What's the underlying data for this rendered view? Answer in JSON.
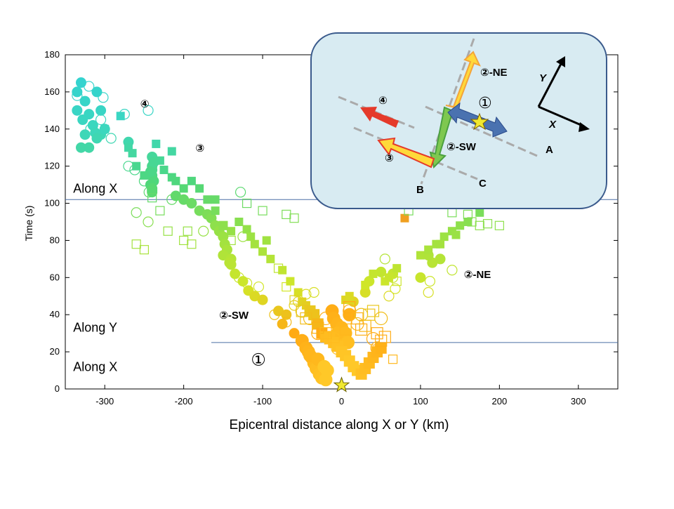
{
  "chart_data": {
    "type": "scatter",
    "xlabel": "Epicentral distance along X or Y (km)",
    "ylabel": "Time (s)",
    "xlim": [
      -350,
      350
    ],
    "ylim": [
      0,
      180
    ],
    "xticks": [
      -300,
      -200,
      -100,
      0,
      100,
      200,
      300
    ],
    "yticks": [
      0,
      20,
      40,
      60,
      80,
      100,
      120,
      140,
      160,
      180
    ],
    "grid": false,
    "region_labels": [
      {
        "text": "Along X",
        "x": -340,
        "y": 12
      },
      {
        "text": "Along Y",
        "x": -340,
        "y": 33
      },
      {
        "text": "Along X",
        "x": -340,
        "y": 108
      }
    ],
    "boundaries": [
      {
        "y": 25,
        "x_from": -165,
        "x_to": 350
      },
      {
        "y": 102,
        "x_from": -350,
        "x_to": 350
      }
    ],
    "annotations": [
      {
        "text": "①",
        "x": -115,
        "y": 15,
        "big": true
      },
      {
        "text": "②-SW",
        "x": -155,
        "y": 40
      },
      {
        "text": "②-NE",
        "x": 155,
        "y": 62
      },
      {
        "text": "③",
        "x": -185,
        "y": 130
      },
      {
        "text": "④",
        "x": -255,
        "y": 154
      }
    ],
    "epicenter": {
      "x": 0,
      "y": 2,
      "color": "#f0e830"
    },
    "series": [
      {
        "marker": "filled-circle",
        "points": [
          [
            -330,
            165
          ],
          [
            -325,
            155
          ],
          [
            -320,
            148
          ],
          [
            -335,
            160
          ],
          [
            -310,
            160
          ],
          [
            -305,
            150
          ],
          [
            -315,
            142
          ],
          [
            -325,
            137
          ],
          [
            -330,
            130
          ],
          [
            -320,
            130
          ],
          [
            -305,
            137
          ],
          [
            -300,
            140
          ],
          [
            -335,
            150
          ],
          [
            -312,
            138
          ],
          [
            -328,
            145
          ],
          [
            -310,
            135
          ],
          [
            -240,
            125
          ],
          [
            -240,
            120
          ],
          [
            -240,
            118
          ],
          [
            -240,
            115
          ],
          [
            -238,
            112
          ],
          [
            -242,
            110
          ],
          [
            -240,
            108
          ],
          [
            -238,
            122
          ],
          [
            -242,
            117
          ],
          [
            -240,
            106
          ],
          [
            -270,
            133
          ],
          [
            -240,
            107
          ],
          [
            -210,
            104
          ],
          [
            -200,
            102
          ],
          [
            -190,
            100
          ],
          [
            -180,
            96
          ],
          [
            -170,
            94
          ],
          [
            -165,
            92
          ],
          [
            -160,
            88
          ],
          [
            -155,
            85
          ],
          [
            -150,
            82
          ],
          [
            -148,
            78
          ],
          [
            -145,
            75
          ],
          [
            -150,
            72
          ],
          [
            -140,
            70
          ],
          [
            -142,
            68
          ],
          [
            -125,
            58
          ],
          [
            -118,
            53
          ],
          [
            -110,
            50
          ],
          [
            -100,
            48
          ],
          [
            -80,
            42
          ],
          [
            -70,
            40
          ],
          [
            -75,
            35
          ],
          [
            -60,
            30
          ],
          [
            -50,
            26
          ],
          [
            -45,
            22
          ],
          [
            -42,
            20
          ],
          [
            -38,
            17
          ],
          [
            -35,
            14
          ],
          [
            -32,
            11
          ],
          [
            -28,
            8
          ],
          [
            -25,
            6
          ],
          [
            -20,
            5
          ],
          [
            -40,
            18
          ],
          [
            -30,
            16
          ],
          [
            -22,
            12
          ],
          [
            -18,
            10
          ],
          [
            -12,
            42
          ],
          [
            -10,
            38
          ],
          [
            -6,
            35
          ],
          [
            0,
            33
          ],
          [
            5,
            30
          ],
          [
            -3,
            27
          ],
          [
            8,
            25
          ],
          [
            -5,
            30
          ],
          [
            15,
            47
          ],
          [
            10,
            40
          ],
          [
            30,
            52
          ],
          [
            35,
            58
          ],
          [
            50,
            63
          ],
          [
            65,
            62
          ],
          [
            100,
            60
          ],
          [
            115,
            68
          ],
          [
            125,
            70
          ],
          [
            110,
            72
          ],
          [
            -140,
            67
          ],
          [
            -135,
            62
          ]
        ]
      },
      {
        "marker": "open-circle",
        "points": [
          [
            -335,
            158
          ],
          [
            -320,
            163
          ],
          [
            -302,
            157
          ],
          [
            -305,
            145
          ],
          [
            -318,
            140
          ],
          [
            -292,
            135
          ],
          [
            -275,
            148
          ],
          [
            -245,
            150
          ],
          [
            -270,
            120
          ],
          [
            -262,
            118
          ],
          [
            -250,
            112
          ],
          [
            -244,
            106
          ],
          [
            -215,
            102
          ],
          [
            -128,
            106
          ],
          [
            -260,
            95
          ],
          [
            -245,
            90
          ],
          [
            -175,
            85
          ],
          [
            -125,
            82
          ],
          [
            -130,
            60
          ],
          [
            -120,
            57
          ],
          [
            -105,
            55
          ],
          [
            -85,
            40
          ],
          [
            -70,
            36
          ],
          [
            -60,
            45
          ],
          [
            -50,
            42
          ],
          [
            -40,
            38
          ],
          [
            -55,
            47
          ],
          [
            -45,
            51
          ],
          [
            -35,
            52
          ],
          [
            -30,
            30
          ],
          [
            -20,
            38
          ],
          [
            -10,
            27
          ],
          [
            -5,
            22
          ],
          [
            10,
            42
          ],
          [
            20,
            35
          ],
          [
            25,
            40
          ],
          [
            40,
            27
          ],
          [
            45,
            22
          ],
          [
            50,
            38
          ],
          [
            55,
            70
          ],
          [
            60,
            50
          ],
          [
            68,
            54
          ],
          [
            110,
            52
          ],
          [
            112,
            58
          ],
          [
            140,
            64
          ],
          [
            65,
            60
          ]
        ]
      },
      {
        "marker": "filled-square",
        "points": [
          [
            -300,
            140
          ],
          [
            -280,
            147
          ],
          [
            -270,
            130
          ],
          [
            -265,
            127
          ],
          [
            -260,
            120
          ],
          [
            -250,
            115
          ],
          [
            -235,
            132
          ],
          [
            -230,
            123
          ],
          [
            -225,
            118
          ],
          [
            -215,
            128
          ],
          [
            -215,
            114
          ],
          [
            -210,
            112
          ],
          [
            -200,
            108
          ],
          [
            -190,
            112
          ],
          [
            -180,
            108
          ],
          [
            -170,
            102
          ],
          [
            -160,
            102
          ],
          [
            -160,
            96
          ],
          [
            -150,
            88
          ],
          [
            -140,
            85
          ],
          [
            -130,
            90
          ],
          [
            -120,
            86
          ],
          [
            -115,
            82
          ],
          [
            -110,
            78
          ],
          [
            -95,
            80
          ],
          [
            -100,
            74
          ],
          [
            -90,
            70
          ],
          [
            -75,
            64
          ],
          [
            -65,
            58
          ],
          [
            -55,
            52
          ],
          [
            -50,
            47
          ],
          [
            -45,
            45
          ],
          [
            -40,
            42
          ],
          [
            -35,
            40
          ],
          [
            -30,
            35
          ],
          [
            -25,
            30
          ],
          [
            -20,
            28
          ],
          [
            -15,
            27
          ],
          [
            -10,
            25
          ],
          [
            -5,
            23
          ],
          [
            0,
            20
          ],
          [
            5,
            18
          ],
          [
            10,
            15
          ],
          [
            15,
            12
          ],
          [
            20,
            10
          ],
          [
            25,
            8
          ],
          [
            30,
            11
          ],
          [
            35,
            14
          ],
          [
            40,
            17
          ],
          [
            45,
            20
          ],
          [
            50,
            22
          ],
          [
            5,
            48
          ],
          [
            10,
            50
          ],
          [
            30,
            56
          ],
          [
            40,
            62
          ],
          [
            55,
            58
          ],
          [
            60,
            60
          ],
          [
            70,
            65
          ],
          [
            100,
            72
          ],
          [
            110,
            75
          ],
          [
            120,
            78
          ],
          [
            130,
            82
          ],
          [
            140,
            85
          ],
          [
            150,
            88
          ],
          [
            125,
            78
          ],
          [
            145,
            83
          ],
          [
            160,
            90
          ],
          [
            80,
            92
          ],
          [
            175,
            95
          ]
        ]
      },
      {
        "marker": "open-square",
        "points": [
          [
            -240,
            103
          ],
          [
            -230,
            96
          ],
          [
            -220,
            85
          ],
          [
            -195,
            85
          ],
          [
            -200,
            80
          ],
          [
            -190,
            78
          ],
          [
            -250,
            75
          ],
          [
            -260,
            78
          ],
          [
            -150,
            88
          ],
          [
            -140,
            80
          ],
          [
            -120,
            100
          ],
          [
            -100,
            96
          ],
          [
            -70,
            94
          ],
          [
            -60,
            92
          ],
          [
            -80,
            65
          ],
          [
            -70,
            55
          ],
          [
            -60,
            48
          ],
          [
            -50,
            42
          ],
          [
            -45,
            38
          ],
          [
            -30,
            33
          ],
          [
            -20,
            30
          ],
          [
            -10,
            28
          ],
          [
            5,
            32
          ],
          [
            10,
            44
          ],
          [
            20,
            38
          ],
          [
            25,
            32
          ],
          [
            30,
            34
          ],
          [
            35,
            40
          ],
          [
            40,
            42
          ],
          [
            45,
            30
          ],
          [
            50,
            26
          ],
          [
            55,
            28
          ],
          [
            65,
            16
          ],
          [
            70,
            58
          ],
          [
            85,
            96
          ],
          [
            95,
            100
          ],
          [
            115,
            100
          ],
          [
            125,
            102
          ],
          [
            140,
            95
          ],
          [
            165,
            90
          ],
          [
            175,
            88
          ],
          [
            185,
            89
          ],
          [
            200,
            88
          ],
          [
            160,
            94
          ]
        ]
      }
    ]
  },
  "inset": {
    "labels": {
      "A": "A",
      "B": "B",
      "C": "C",
      "X": "X",
      "Y": "Y"
    },
    "annotations": {
      "p1": "①",
      "p2ne": "②-NE",
      "p2sw": "②-SW",
      "p3": "③",
      "p4": "④"
    },
    "colors": {
      "background": "#d8ebf2",
      "border": "#3a5a8c",
      "blue": "#4a72b0",
      "green": "#7ec850",
      "yellow": "#ffd93a",
      "orange": "#f4a43a",
      "red": "#e53a2a"
    }
  }
}
